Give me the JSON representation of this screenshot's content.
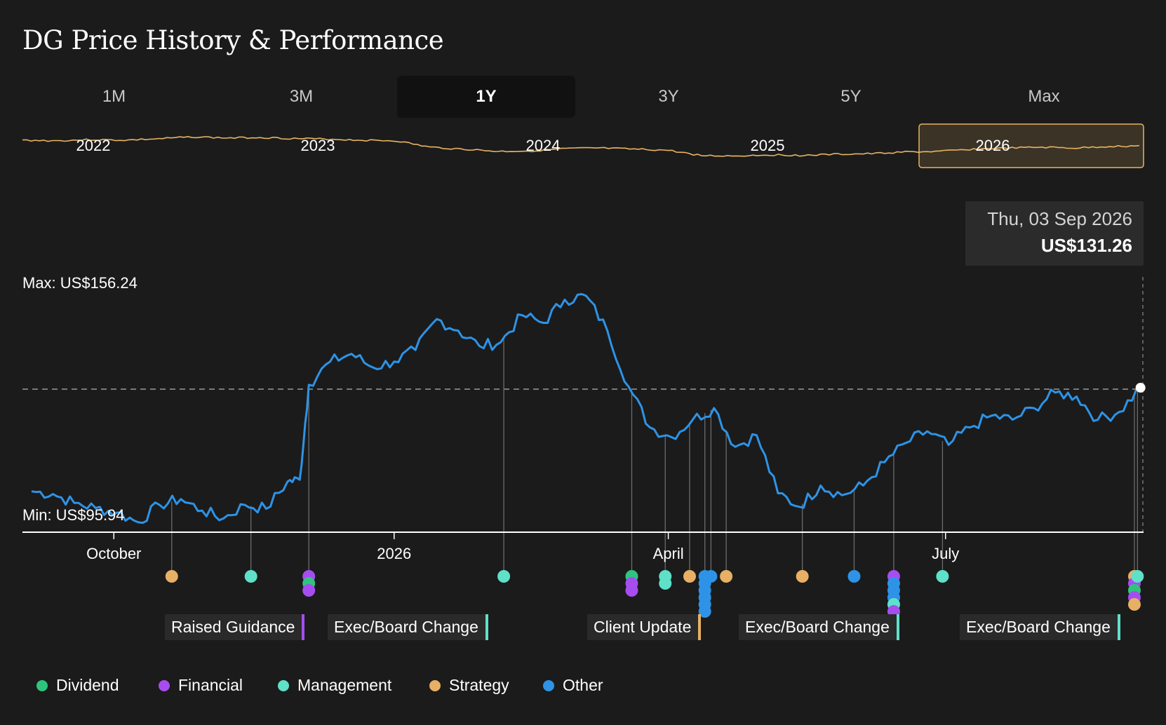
{
  "page_title": "DG Price History & Performance",
  "tabs": [
    {
      "label": "1M",
      "active": false
    },
    {
      "label": "3M",
      "active": false
    },
    {
      "label": "1Y",
      "active": true
    },
    {
      "label": "3Y",
      "active": false
    },
    {
      "label": "5Y",
      "active": false
    },
    {
      "label": "Max",
      "active": false
    }
  ],
  "navigator": {
    "year_labels": [
      "2022",
      "2023",
      "2024",
      "2025",
      "2026"
    ],
    "selected_range": "2026",
    "line_color": "#e8b463"
  },
  "tooltip": {
    "date": "Thu, 03 Sep 2026",
    "price": "US$131.26"
  },
  "legend": [
    {
      "label": "Dividend",
      "color": "#2fc47e"
    },
    {
      "label": "Financial",
      "color": "#a64df0"
    },
    {
      "label": "Management",
      "color": "#5fe0c8"
    },
    {
      "label": "Strategy",
      "color": "#e8b064"
    },
    {
      "label": "Other",
      "color": "#2e93e6"
    }
  ],
  "event_labels": [
    {
      "label": "Raised Guidance",
      "color": "#a64df0"
    },
    {
      "label": "Exec/Board Change",
      "color": "#5fe0c8"
    },
    {
      "label": "Client Update",
      "color": "#e8b064"
    },
    {
      "label": "Exec/Board Change",
      "color": "#5fe0c8"
    },
    {
      "label": "Exec/Board Change",
      "color": "#5fe0c8"
    }
  ],
  "chart_data": {
    "type": "line",
    "title": "DG Price History & Performance",
    "max_label": "Max: US$156.24",
    "min_label": "Min: US$95.94",
    "x_tick_labels": [
      "October",
      "2026",
      "April",
      "July"
    ],
    "y_range": [
      95.94,
      156.24
    ],
    "line_color": "#2e93e6",
    "reference_line": 131.26,
    "series": [
      {
        "x": [
          "2025-09-04",
          "2025-09-11",
          "2025-09-18",
          "2025-09-25",
          "2025-10-02",
          "2025-10-09",
          "2025-10-16",
          "2025-10-23",
          "2025-10-30",
          "2025-11-06",
          "2025-11-13",
          "2025-11-20",
          "2025-11-27",
          "2025-12-01",
          "2025-12-04",
          "2025-12-11",
          "2025-12-18",
          "2025-12-25",
          "2026-01-01",
          "2026-01-08",
          "2026-01-15",
          "2026-01-22",
          "2026-01-29",
          "2026-02-05",
          "2026-02-12",
          "2026-02-19",
          "2026-02-26",
          "2026-03-05",
          "2026-03-12",
          "2026-03-19",
          "2026-03-26",
          "2026-04-02",
          "2026-04-09",
          "2026-04-16",
          "2026-04-23",
          "2026-04-30",
          "2026-05-07",
          "2026-05-14",
          "2026-05-21",
          "2026-05-28",
          "2026-06-04",
          "2026-06-11",
          "2026-06-18",
          "2026-06-25",
          "2026-07-02",
          "2026-07-09",
          "2026-07-16",
          "2026-07-23",
          "2026-07-30",
          "2026-08-06",
          "2026-08-13",
          "2026-08-20",
          "2026-08-27",
          "2026-09-03"
        ],
        "y": [
          104.5,
          103.8,
          101.5,
          100.2,
          99.0,
          96.5,
          101.0,
          102.5,
          99.5,
          97.5,
          101.0,
          100.0,
          107.0,
          107.5,
          132.0,
          138.0,
          140.0,
          136.5,
          138.0,
          141.0,
          149.0,
          146.0,
          142.0,
          143.0,
          150.0,
          148.0,
          154.0,
          155.0,
          146.0,
          131.5,
          121.0,
          118.5,
          123.0,
          126.0,
          116.0,
          119.0,
          104.0,
          100.5,
          106.0,
          103.5,
          106.0,
          112.0,
          117.0,
          120.0,
          116.5,
          121.0,
          124.0,
          123.0,
          126.0,
          130.0,
          129.0,
          123.0,
          125.0,
          131.26
        ]
      }
    ],
    "events": [
      {
        "date": "2025-10-20",
        "types": [
          "Strategy"
        ]
      },
      {
        "date": "2025-11-15",
        "types": [
          "Management"
        ]
      },
      {
        "date": "2025-12-04",
        "types": [
          "Financial",
          "Dividend",
          "Financial"
        ]
      },
      {
        "date": "2026-02-06",
        "types": [
          "Management"
        ]
      },
      {
        "date": "2026-03-20",
        "types": [
          "Dividend",
          "Financial",
          "Financial"
        ]
      },
      {
        "date": "2026-03-31",
        "types": [
          "Management",
          "Management"
        ]
      },
      {
        "date": "2026-04-08",
        "types": [
          "Strategy"
        ]
      },
      {
        "date": "2026-04-13",
        "types": [
          "Other",
          "Other",
          "Other",
          "Other",
          "Other",
          "Other"
        ]
      },
      {
        "date": "2026-04-15",
        "types": [
          "Other"
        ]
      },
      {
        "date": "2026-04-20",
        "types": [
          "Strategy"
        ]
      },
      {
        "date": "2026-05-15",
        "types": [
          "Strategy"
        ]
      },
      {
        "date": "2026-06-01",
        "types": [
          "Other"
        ]
      },
      {
        "date": "2026-06-14",
        "types": [
          "Financial",
          "Other",
          "Other",
          "Other",
          "Management",
          "Financial"
        ]
      },
      {
        "date": "2026-06-30",
        "types": [
          "Management"
        ]
      },
      {
        "date": "2026-09-01",
        "types": [
          "Strategy",
          "Financial",
          "Dividend",
          "Financial",
          "Strategy"
        ]
      },
      {
        "date": "2026-09-02",
        "types": [
          "Management"
        ]
      }
    ]
  }
}
